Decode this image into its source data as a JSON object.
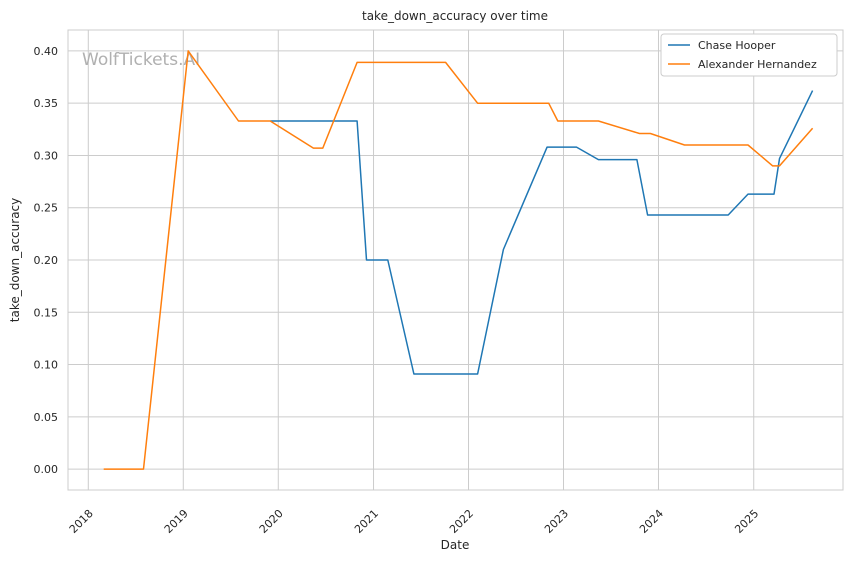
{
  "chart_data": {
    "type": "line",
    "title": "take_down_accuracy over time",
    "xlabel": "Date",
    "ylabel": "take_down_accuracy",
    "watermark": "WolfTickets.AI",
    "grid": true,
    "legend_position": "top-right",
    "xlim": [
      "2017-10-15",
      "2025-12-10"
    ],
    "ylim": [
      -0.02,
      0.42
    ],
    "x_ticks": [
      "2018",
      "2019",
      "2020",
      "2021",
      "2022",
      "2023",
      "2024",
      "2025"
    ],
    "y_ticks": [
      "0.00",
      "0.05",
      "0.10",
      "0.15",
      "0.20",
      "0.25",
      "0.30",
      "0.35",
      "0.40"
    ],
    "series": [
      {
        "name": "Chase Hooper",
        "color": "#1f77b4",
        "points": [
          [
            "2019-12-01",
            0.333
          ],
          [
            "2020-10-30",
            0.333
          ],
          [
            "2020-12-05",
            0.2
          ],
          [
            "2021-02-25",
            0.2
          ],
          [
            "2021-06-05",
            0.091
          ],
          [
            "2022-02-05",
            0.091
          ],
          [
            "2022-05-15",
            0.21
          ],
          [
            "2022-10-30",
            0.308
          ],
          [
            "2023-02-20",
            0.308
          ],
          [
            "2023-05-15",
            0.296
          ],
          [
            "2023-10-10",
            0.296
          ],
          [
            "2023-11-20",
            0.243
          ],
          [
            "2024-09-25",
            0.243
          ],
          [
            "2024-12-10",
            0.263
          ],
          [
            "2025-03-20",
            0.263
          ],
          [
            "2025-04-10",
            0.297
          ],
          [
            "2025-08-15",
            0.362
          ]
        ]
      },
      {
        "name": "Alexander Hernandez",
        "color": "#ff7f0e",
        "points": [
          [
            "2018-03-01",
            0.0
          ],
          [
            "2018-08-01",
            0.0
          ],
          [
            "2019-01-20",
            0.4
          ],
          [
            "2019-08-01",
            0.333
          ],
          [
            "2019-12-01",
            0.333
          ],
          [
            "2020-05-15",
            0.307
          ],
          [
            "2020-06-20",
            0.307
          ],
          [
            "2020-10-30",
            0.389
          ],
          [
            "2021-10-05",
            0.389
          ],
          [
            "2022-02-05",
            0.35
          ],
          [
            "2022-11-05",
            0.35
          ],
          [
            "2022-12-10",
            0.333
          ],
          [
            "2023-05-15",
            0.333
          ],
          [
            "2023-10-20",
            0.321
          ],
          [
            "2023-12-01",
            0.321
          ],
          [
            "2024-04-10",
            0.31
          ],
          [
            "2024-12-10",
            0.31
          ],
          [
            "2025-03-15",
            0.29
          ],
          [
            "2025-04-10",
            0.29
          ],
          [
            "2025-08-15",
            0.326
          ]
        ]
      }
    ]
  }
}
